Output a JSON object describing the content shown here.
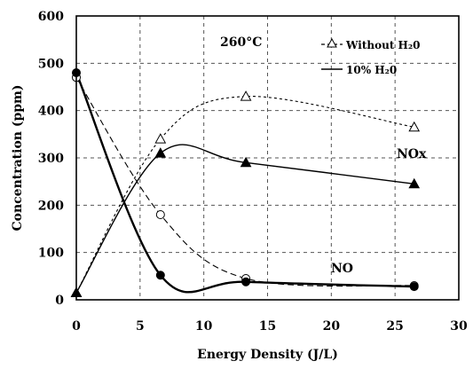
{
  "chart_data": {
    "type": "line",
    "xlabel": "Energy Density (J/L)",
    "ylabel": "Concentration (ppm)",
    "xlim": [
      0,
      30
    ],
    "ylim": [
      0,
      600
    ],
    "xticks": [
      "0",
      "5",
      "10",
      "15",
      "20",
      "25",
      "30"
    ],
    "yticks": [
      "0",
      "100",
      "200",
      "300",
      "400",
      "500",
      "600"
    ],
    "grid": true,
    "legend_placement": "top-right",
    "annotations": {
      "temperature": "260°C",
      "nox_label": "NOx",
      "no_label": "NO"
    },
    "legend": [
      {
        "label": "Without H₂0",
        "style": "dashed"
      },
      {
        "label": "10% H₂0",
        "style": "solid"
      }
    ],
    "series": [
      {
        "name": "Without H₂0",
        "group": "NO",
        "style": "dashed",
        "marker": "open-circle",
        "x": [
          0,
          6.6,
          13.3,
          26.5
        ],
        "y": [
          470,
          180,
          45,
          30
        ]
      },
      {
        "name": "Without H₂0",
        "group": "NOx",
        "style": "dashed",
        "marker": "open-triangle",
        "x": [
          0,
          6.6,
          13.3,
          26.5
        ],
        "y": [
          15,
          340,
          430,
          365
        ]
      },
      {
        "name": "10% H₂0",
        "group": "NO",
        "style": "solid",
        "marker": "filled-circle",
        "x": [
          0,
          6.6,
          13.3,
          26.5
        ],
        "y": [
          480,
          52,
          38,
          28
        ]
      },
      {
        "name": "10% H₂0",
        "group": "NOx",
        "style": "solid",
        "marker": "filled-triangle",
        "x": [
          0,
          6.6,
          13.3,
          26.5
        ],
        "y": [
          15,
          310,
          290,
          245
        ]
      }
    ]
  }
}
